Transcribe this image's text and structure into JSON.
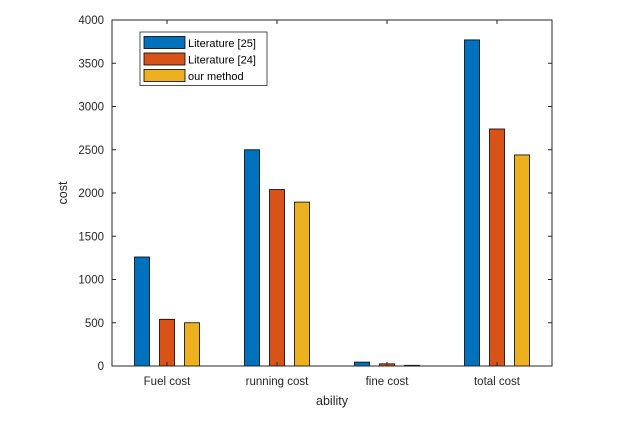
{
  "chart_data": {
    "type": "bar",
    "title": "",
    "xlabel": "ability",
    "ylabel": "cost",
    "categories": [
      "Fuel cost",
      "running cost",
      "fine cost",
      "total cost"
    ],
    "series": [
      {
        "name": "Literature [25]",
        "color": "#0072BD",
        "values": [
          1260,
          2500,
          45,
          3770
        ]
      },
      {
        "name": "Literature [24]",
        "color": "#D95319",
        "values": [
          540,
          2040,
          25,
          2740
        ]
      },
      {
        "name": "our method",
        "color": "#EDB120",
        "values": [
          500,
          1895,
          8,
          2440
        ]
      }
    ],
    "ylim": [
      0,
      4000
    ],
    "yticks": [
      0,
      500,
      1000,
      1500,
      2000,
      2500,
      3000,
      3500,
      4000
    ],
    "grid": false,
    "legend_position": "top-left"
  }
}
